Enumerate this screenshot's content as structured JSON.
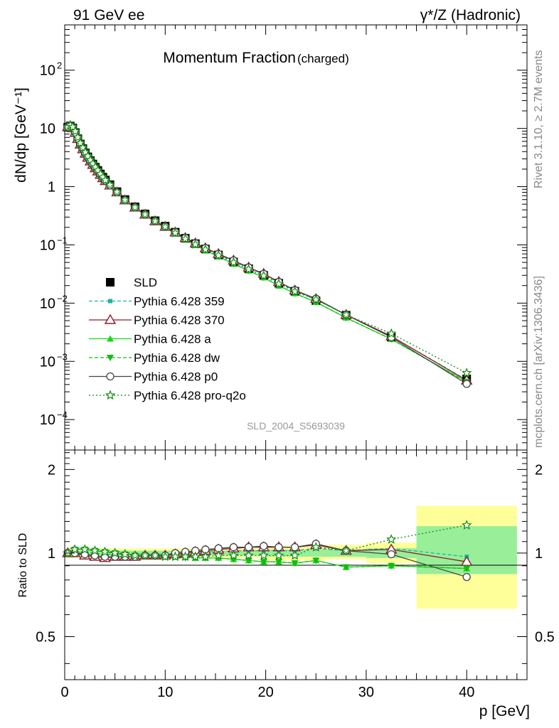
{
  "header": {
    "left": "91 GeV ee",
    "right": "γ*/Z (Hadronic)",
    "side_top": "Rivet 3.1.10, ≥ 2.7M events",
    "side_bottom": "mcplots.cern.ch [arXiv:1306.3436]",
    "analysis_id": "SLD_2004_S5693039"
  },
  "chart_data": [
    {
      "type": "scatter",
      "panel": "main",
      "title": "Momentum Fraction",
      "title_suffix": "(charged)",
      "ylabel": "dN/dp [GeV⁻¹]",
      "yscale": "log",
      "ylim": [
        3e-05,
        600
      ],
      "xlim": [
        0,
        46
      ],
      "y_ticks": [
        {
          "value": 0.0001,
          "label": "10",
          "sup": "−4"
        },
        {
          "value": 0.001,
          "label": "10",
          "sup": "−3"
        },
        {
          "value": 0.01,
          "label": "10",
          "sup": "−2"
        },
        {
          "value": 0.1,
          "label": "10",
          "sup": "−1"
        },
        {
          "value": 1,
          "label": "1",
          "sup": ""
        },
        {
          "value": 10,
          "label": "10",
          "sup": ""
        },
        {
          "value": 100,
          "label": "10",
          "sup": "2"
        }
      ],
      "series": [
        {
          "name": "SLD",
          "color": "#000000",
          "marker": "square",
          "style": "none",
          "x": [
            0.3,
            0.55,
            0.8,
            1.05,
            1.3,
            1.55,
            1.8,
            2.05,
            2.3,
            2.55,
            2.8,
            3.05,
            3.3,
            3.55,
            3.8,
            4.05,
            4.5,
            5.2,
            6.0,
            7.0,
            8.0,
            9.0,
            10.0,
            11.0,
            12.0,
            13.0,
            14.0,
            15.3,
            16.8,
            18.3,
            19.8,
            21.3,
            22.9,
            25.0,
            28.0,
            32.5,
            40.0
          ],
          "values": [
            10.5,
            11.0,
            10.2,
            8.5,
            6.7,
            5.4,
            4.5,
            3.8,
            3.25,
            2.8,
            2.45,
            2.15,
            1.9,
            1.65,
            1.45,
            1.3,
            1.08,
            0.82,
            0.6,
            0.45,
            0.34,
            0.26,
            0.21,
            0.165,
            0.13,
            0.105,
            0.085,
            0.067,
            0.051,
            0.039,
            0.03,
            0.022,
            0.016,
            0.011,
            0.0062,
            0.0026,
            0.0005
          ]
        },
        {
          "name": "Pythia 6.428 359",
          "color": "#1bb5a0",
          "marker": "small-square",
          "style": "dashed",
          "x": [
            0.3,
            0.55,
            0.8,
            1.05,
            1.3,
            1.55,
            1.8,
            2.05,
            2.3,
            2.55,
            2.8,
            3.05,
            3.3,
            3.55,
            3.8,
            4.05,
            4.5,
            5.2,
            6.0,
            7.0,
            8.0,
            9.0,
            10.0,
            11.0,
            12.0,
            13.0,
            14.0,
            15.3,
            16.8,
            18.3,
            19.8,
            21.3,
            22.9,
            25.0,
            28.0,
            32.5,
            40.0
          ],
          "values": [
            10.4,
            10.9,
            10.3,
            8.7,
            6.8,
            5.5,
            4.6,
            3.85,
            3.3,
            2.84,
            2.47,
            2.16,
            1.9,
            1.65,
            1.45,
            1.29,
            1.07,
            0.81,
            0.59,
            0.44,
            0.335,
            0.258,
            0.208,
            0.165,
            0.131,
            0.106,
            0.086,
            0.068,
            0.052,
            0.04,
            0.031,
            0.0225,
            0.0163,
            0.0115,
            0.0063,
            0.0027,
            0.00048
          ]
        },
        {
          "name": "Pythia 6.428 370",
          "color": "#8b1a2a",
          "marker": "open-triangle",
          "style": "solid",
          "x": [
            0.3,
            0.55,
            0.8,
            1.05,
            1.3,
            1.55,
            1.8,
            2.05,
            2.3,
            2.55,
            2.8,
            3.05,
            3.3,
            3.55,
            3.8,
            4.05,
            4.5,
            5.2,
            6.0,
            7.0,
            8.0,
            9.0,
            10.0,
            11.0,
            12.0,
            13.0,
            14.0,
            15.3,
            16.8,
            18.3,
            19.8,
            21.3,
            22.9,
            25.0,
            28.0,
            32.5,
            40.0
          ],
          "values": [
            10.6,
            11.0,
            10.1,
            8.4,
            6.6,
            5.3,
            4.4,
            3.7,
            3.15,
            2.72,
            2.37,
            2.08,
            1.83,
            1.6,
            1.4,
            1.25,
            1.05,
            0.8,
            0.585,
            0.44,
            0.332,
            0.255,
            0.205,
            0.164,
            0.132,
            0.107,
            0.088,
            0.07,
            0.054,
            0.041,
            0.032,
            0.0232,
            0.0166,
            0.0118,
            0.0063,
            0.0027,
            0.00047
          ]
        },
        {
          "name": "Pythia 6.428 a",
          "color": "#11dd11",
          "marker": "triangle",
          "style": "solid",
          "x": [
            0.3,
            0.55,
            0.8,
            1.05,
            1.3,
            1.55,
            1.8,
            2.05,
            2.3,
            2.55,
            2.8,
            3.05,
            3.3,
            3.55,
            3.8,
            4.05,
            4.5,
            5.2,
            6.0,
            7.0,
            8.0,
            9.0,
            10.0,
            11.0,
            12.0,
            13.0,
            14.0,
            15.3,
            16.8,
            18.3,
            19.8,
            21.3,
            22.9,
            25.0,
            28.0,
            32.5,
            40.0
          ],
          "values": [
            10.6,
            11.3,
            10.6,
            8.9,
            7.0,
            5.6,
            4.65,
            3.9,
            3.33,
            2.86,
            2.48,
            2.17,
            1.9,
            1.65,
            1.45,
            1.29,
            1.07,
            0.81,
            0.59,
            0.44,
            0.333,
            0.255,
            0.204,
            0.159,
            0.125,
            0.1,
            0.08,
            0.063,
            0.047,
            0.036,
            0.0275,
            0.0198,
            0.0147,
            0.0104,
            0.0056,
            0.0024,
            0.00045
          ]
        },
        {
          "name": "Pythia 6.428 dw",
          "color": "#11bb11",
          "marker": "down-triangle",
          "style": "dashed",
          "x": [
            0.3,
            0.55,
            0.8,
            1.05,
            1.3,
            1.55,
            1.8,
            2.05,
            2.3,
            2.55,
            2.8,
            3.05,
            3.3,
            3.55,
            3.8,
            4.05,
            4.5,
            5.2,
            6.0,
            7.0,
            8.0,
            9.0,
            10.0,
            11.0,
            12.0,
            13.0,
            14.0,
            15.3,
            16.8,
            18.3,
            19.8,
            21.3,
            22.9,
            25.0,
            28.0,
            32.5,
            40.0
          ],
          "values": [
            10.5,
            11.2,
            10.5,
            8.8,
            6.95,
            5.55,
            4.6,
            3.88,
            3.3,
            2.85,
            2.47,
            2.16,
            1.89,
            1.64,
            1.44,
            1.28,
            1.06,
            0.8,
            0.585,
            0.436,
            0.33,
            0.252,
            0.202,
            0.158,
            0.124,
            0.1,
            0.08,
            0.063,
            0.047,
            0.036,
            0.0275,
            0.0199,
            0.0146,
            0.0104,
            0.0056,
            0.0024,
            0.00044
          ]
        },
        {
          "name": "Pythia 6.428 p0",
          "color": "#444444",
          "marker": "open-circle",
          "style": "solid",
          "x": [
            0.3,
            0.55,
            0.8,
            1.05,
            1.3,
            1.55,
            1.8,
            2.05,
            2.3,
            2.55,
            2.8,
            3.05,
            3.3,
            3.55,
            3.8,
            4.05,
            4.5,
            5.2,
            6.0,
            7.0,
            8.0,
            9.0,
            10.0,
            11.0,
            12.0,
            13.0,
            14.0,
            15.3,
            16.8,
            18.3,
            19.8,
            21.3,
            22.9,
            25.0,
            28.0,
            32.5,
            40.0
          ],
          "values": [
            10.5,
            11.0,
            10.2,
            8.5,
            6.6,
            5.3,
            4.4,
            3.72,
            3.16,
            2.72,
            2.37,
            2.08,
            1.83,
            1.6,
            1.41,
            1.26,
            1.05,
            0.8,
            0.585,
            0.44,
            0.333,
            0.256,
            0.207,
            0.166,
            0.132,
            0.107,
            0.088,
            0.07,
            0.054,
            0.041,
            0.0318,
            0.0231,
            0.0167,
            0.0119,
            0.0063,
            0.0026,
            0.00041
          ]
        },
        {
          "name": "Pythia 6.428 pro-q2o",
          "color": "#118811",
          "marker": "open-star",
          "style": "dotted",
          "x": [
            0.3,
            0.55,
            0.8,
            1.05,
            1.3,
            1.55,
            1.8,
            2.05,
            2.3,
            2.55,
            2.8,
            3.05,
            3.3,
            3.55,
            3.8,
            4.05,
            4.5,
            5.2,
            6.0,
            7.0,
            8.0,
            9.0,
            10.0,
            11.0,
            12.0,
            13.0,
            14.0,
            15.3,
            16.8,
            18.3,
            19.8,
            21.3,
            22.9,
            25.0,
            28.0,
            32.5,
            40.0
          ],
          "values": [
            10.6,
            11.3,
            10.6,
            8.9,
            7.0,
            5.6,
            4.65,
            3.9,
            3.33,
            2.86,
            2.48,
            2.17,
            1.9,
            1.65,
            1.45,
            1.29,
            1.07,
            0.81,
            0.59,
            0.44,
            0.333,
            0.255,
            0.204,
            0.16,
            0.127,
            0.102,
            0.083,
            0.066,
            0.05,
            0.038,
            0.0295,
            0.0214,
            0.0158,
            0.0115,
            0.0063,
            0.003,
            0.00063
          ]
        }
      ]
    },
    {
      "type": "line",
      "panel": "ratio",
      "ylabel": "Ratio to SLD",
      "xlabel": "p [GeV]",
      "ylim": [
        0.35,
        2.35
      ],
      "xlim": [
        0,
        46
      ],
      "x_ticks": [
        0,
        10,
        20,
        30,
        40
      ],
      "y_ticks": [
        0.5,
        1,
        2
      ],
      "bands": [
        {
          "x0": 0,
          "x1": 35,
          "stat_lo": 0.98,
          "stat_hi": 1.02,
          "tot_lo": 0.96,
          "tot_hi": 1.04
        },
        {
          "x0": 20,
          "x1": 26,
          "stat_lo": 0.97,
          "stat_hi": 1.03,
          "tot_lo": 0.94,
          "tot_hi": 1.06
        },
        {
          "x0": 26,
          "x1": 30,
          "stat_lo": 0.97,
          "stat_hi": 1.03,
          "tot_lo": 0.95,
          "tot_hi": 1.07
        },
        {
          "x0": 30,
          "x1": 35,
          "stat_lo": 0.96,
          "stat_hi": 1.04,
          "tot_lo": 0.92,
          "tot_hi": 1.09
        },
        {
          "x0": 35,
          "x1": 45,
          "stat_lo": 0.84,
          "stat_hi": 1.25,
          "tot_lo": 0.63,
          "tot_hi": 1.48
        }
      ],
      "series": [
        {
          "name": "Pythia 6.428 359",
          "x": [
            0.3,
            1,
            2,
            3,
            4,
            5,
            6,
            7,
            8,
            9,
            10,
            11,
            12,
            13,
            14,
            15.3,
            16.8,
            18.3,
            19.8,
            21.3,
            22.9,
            25,
            28,
            32.5,
            40
          ],
          "values": [
            0.99,
            1.0,
            1.01,
            1.0,
            0.99,
            0.99,
            0.99,
            0.99,
            0.99,
            0.99,
            0.99,
            1.0,
            1.0,
            1.0,
            1.01,
            1.01,
            1.02,
            1.02,
            1.02,
            1.02,
            1.02,
            1.04,
            1.02,
            1.04,
            0.97
          ]
        },
        {
          "name": "Pythia 6.428 370",
          "x": [
            0.3,
            1,
            2,
            3,
            4,
            5,
            6,
            7,
            8,
            9,
            10,
            11,
            12,
            13,
            14,
            15.3,
            16.8,
            18.3,
            19.8,
            21.3,
            22.9,
            25,
            28,
            32.5,
            40
          ],
          "values": [
            1.0,
            1.0,
            0.98,
            0.97,
            0.96,
            0.97,
            0.97,
            0.97,
            0.98,
            0.98,
            0.98,
            0.99,
            1.0,
            1.01,
            1.02,
            1.03,
            1.04,
            1.05,
            1.05,
            1.05,
            1.05,
            1.07,
            1.02,
            1.03,
            0.93
          ]
        },
        {
          "name": "Pythia 6.428 a",
          "x": [
            0.3,
            1,
            2,
            3,
            4,
            5,
            6,
            7,
            8,
            9,
            10,
            11,
            12,
            13,
            14,
            15.3,
            16.8,
            18.3,
            19.8,
            21.3,
            22.9,
            25,
            28,
            32.5,
            40
          ],
          "values": [
            1.0,
            1.03,
            1.03,
            1.02,
            1.01,
            1.0,
            0.99,
            0.98,
            0.98,
            0.98,
            0.97,
            0.97,
            0.97,
            0.96,
            0.96,
            0.96,
            0.95,
            0.94,
            0.93,
            0.93,
            0.92,
            0.94,
            0.89,
            0.9,
            0.88
          ]
        },
        {
          "name": "Pythia 6.428 dw",
          "x": [
            0.3,
            1,
            2,
            3,
            4,
            5,
            6,
            7,
            8,
            9,
            10,
            11,
            12,
            13,
            14,
            15.3,
            16.8,
            18.3,
            19.8,
            21.3,
            22.9,
            25,
            28,
            32.5,
            40
          ],
          "values": [
            1.0,
            1.03,
            1.03,
            1.02,
            1.01,
            1.0,
            0.99,
            0.98,
            0.98,
            0.97,
            0.97,
            0.97,
            0.96,
            0.96,
            0.96,
            0.96,
            0.95,
            0.94,
            0.93,
            0.93,
            0.92,
            0.94,
            0.89,
            0.9,
            0.88
          ]
        },
        {
          "name": "Pythia 6.428 p0",
          "x": [
            0.3,
            1,
            2,
            3,
            4,
            5,
            6,
            7,
            8,
            9,
            10,
            11,
            12,
            13,
            14,
            15.3,
            16.8,
            18.3,
            19.8,
            21.3,
            22.9,
            25,
            28,
            32.5,
            40
          ],
          "values": [
            1.0,
            1.0,
            0.99,
            0.98,
            0.97,
            0.97,
            0.97,
            0.97,
            0.98,
            0.98,
            0.98,
            1.0,
            1.01,
            1.02,
            1.03,
            1.04,
            1.05,
            1.05,
            1.06,
            1.05,
            1.05,
            1.08,
            1.02,
            0.99,
            0.82
          ]
        },
        {
          "name": "Pythia 6.428 pro-q2o",
          "x": [
            0.3,
            1,
            2,
            3,
            4,
            5,
            6,
            7,
            8,
            9,
            10,
            11,
            12,
            13,
            14,
            15.3,
            16.8,
            18.3,
            19.8,
            21.3,
            22.9,
            25,
            28,
            32.5,
            40
          ],
          "values": [
            1.0,
            1.03,
            1.03,
            1.02,
            1.01,
            1.0,
            0.99,
            0.98,
            0.98,
            0.98,
            0.97,
            0.97,
            0.97,
            0.97,
            0.97,
            0.98,
            0.98,
            0.98,
            0.98,
            0.98,
            0.98,
            1.05,
            1.02,
            1.12,
            1.26
          ]
        }
      ]
    }
  ],
  "colors": {
    "band_total": "#ffff99",
    "band_stat": "#99ee99"
  }
}
